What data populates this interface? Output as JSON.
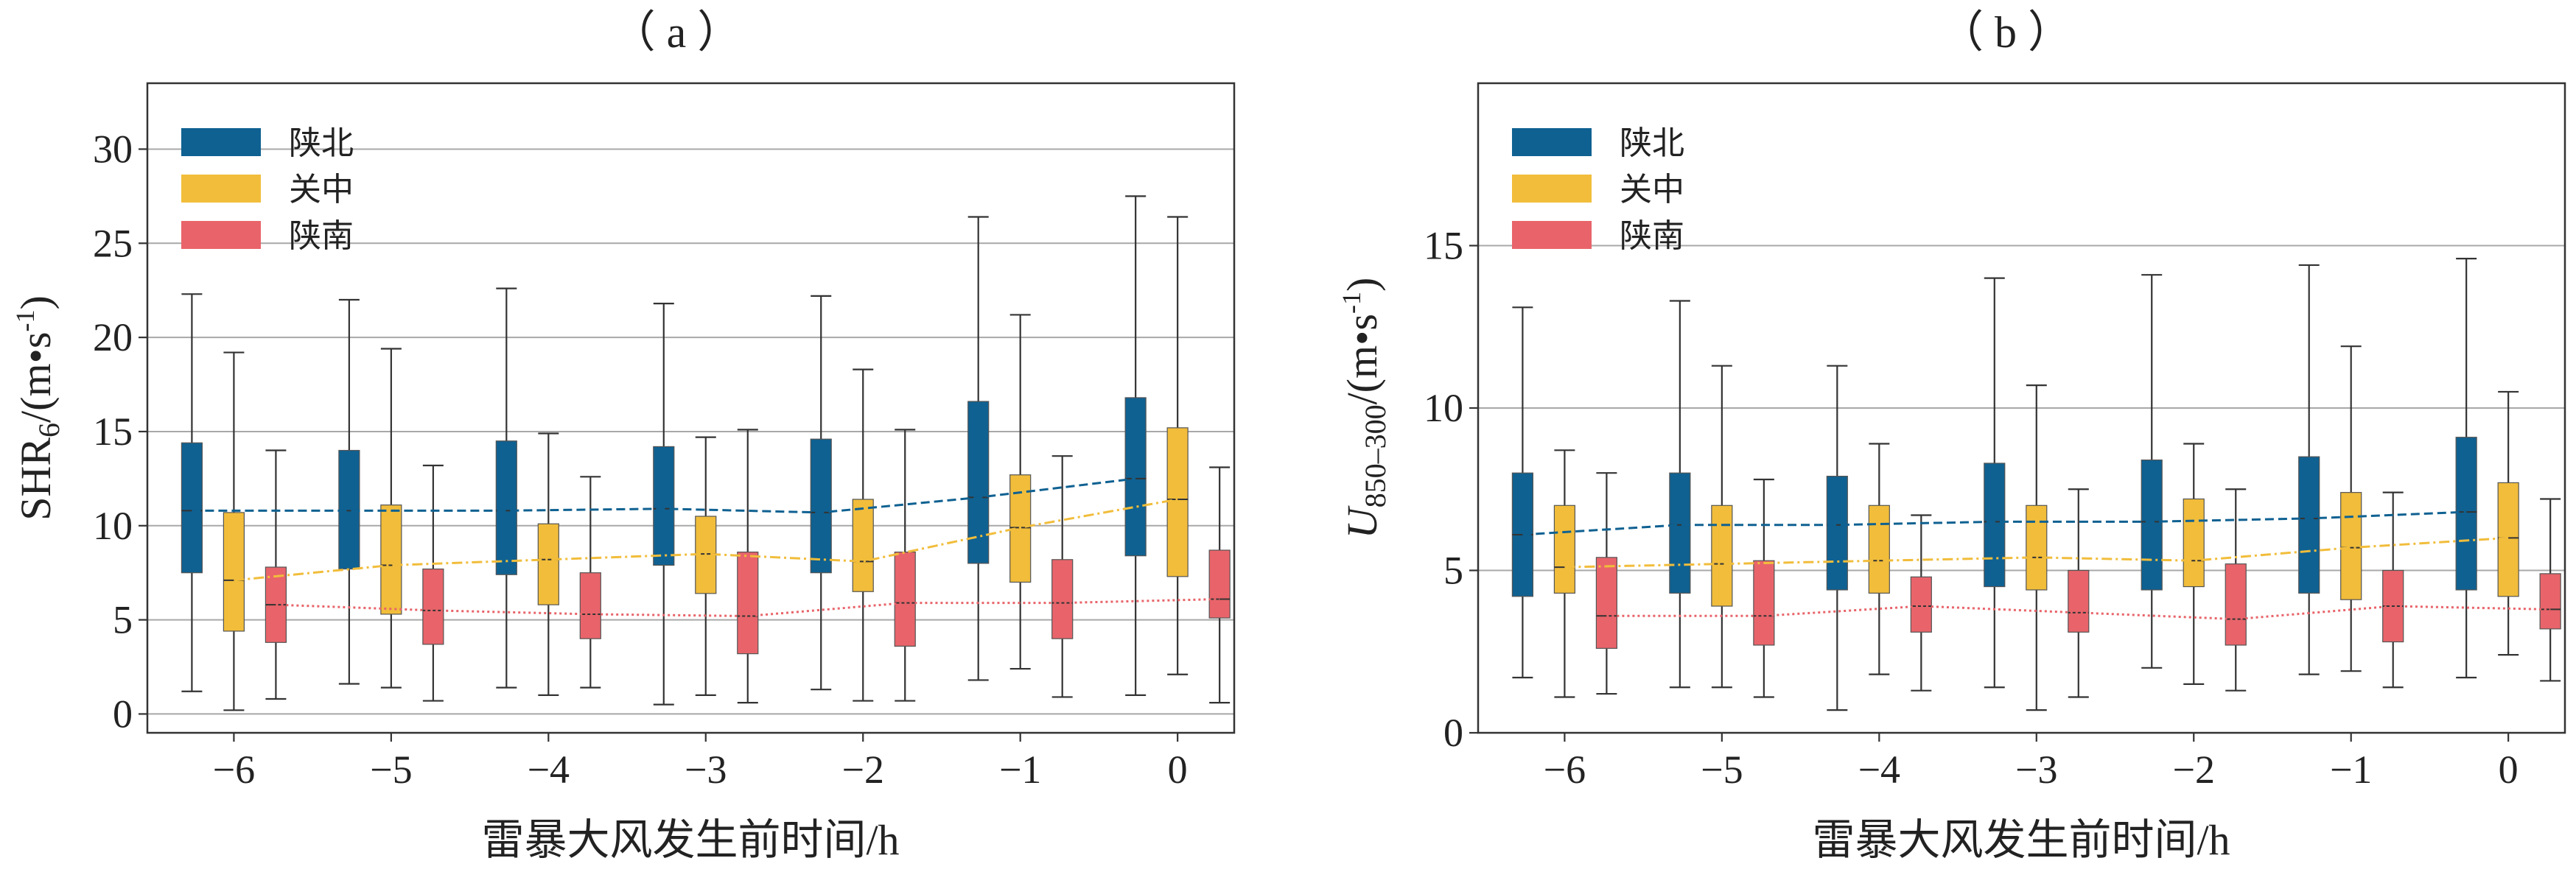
{
  "colors": {
    "north": "#0f6191",
    "central": "#f1bd3b",
    "south": "#e8646a"
  },
  "chart_data": [
    {
      "panel_label": "（ a ）",
      "type": "box",
      "xlabel": "雷暴大风发生前时间/h",
      "ylabel_main": "SHR",
      "ylabel_sub": "6",
      "ylabel_unit": "/(m•s",
      "ylabel_exp": "-1",
      "ylabel_close": ")",
      "categories": [
        "−6",
        "−5",
        "−4",
        "−3",
        "−2",
        "−1",
        "0"
      ],
      "x_values": [
        -6,
        -5,
        -4,
        -3,
        -2,
        -1,
        0
      ],
      "ylim": [
        -1,
        33.5
      ],
      "yticks": [
        0,
        5,
        10,
        15,
        20,
        25,
        30
      ],
      "ytick_labels": [
        "0",
        "5",
        "10",
        "15",
        "20",
        "25",
        "30"
      ],
      "grid": "horizontal",
      "legend_position": "top-left",
      "series": [
        {
          "name": "陕北",
          "color_key": "north",
          "line_style": "dashed",
          "boxes": [
            {
              "whislo": 1.2,
              "q1": 7.5,
              "med": 10.8,
              "q3": 14.4,
              "whishi": 22.3
            },
            {
              "whislo": 1.6,
              "q1": 7.7,
              "med": 10.8,
              "q3": 14.0,
              "whishi": 22.0
            },
            {
              "whislo": 1.4,
              "q1": 7.4,
              "med": 10.8,
              "q3": 14.5,
              "whishi": 22.6
            },
            {
              "whislo": 0.5,
              "q1": 7.9,
              "med": 10.9,
              "q3": 14.2,
              "whishi": 21.8
            },
            {
              "whislo": 1.3,
              "q1": 7.5,
              "med": 10.7,
              "q3": 14.6,
              "whishi": 22.2
            },
            {
              "whislo": 1.8,
              "q1": 8.0,
              "med": 11.5,
              "q3": 16.6,
              "whishi": 26.4
            },
            {
              "whislo": 1.0,
              "q1": 8.4,
              "med": 12.5,
              "q3": 16.8,
              "whishi": 27.5
            }
          ]
        },
        {
          "name": "关中",
          "color_key": "central",
          "line_style": "dashdot",
          "boxes": [
            {
              "whislo": 0.2,
              "q1": 4.4,
              "med": 7.1,
              "q3": 10.7,
              "whishi": 19.2
            },
            {
              "whislo": 1.4,
              "q1": 5.3,
              "med": 7.9,
              "q3": 11.1,
              "whishi": 19.4
            },
            {
              "whislo": 1.0,
              "q1": 5.8,
              "med": 8.2,
              "q3": 10.1,
              "whishi": 14.9
            },
            {
              "whislo": 1.0,
              "q1": 6.4,
              "med": 8.5,
              "q3": 10.5,
              "whishi": 14.7
            },
            {
              "whislo": 0.7,
              "q1": 6.5,
              "med": 8.1,
              "q3": 11.4,
              "whishi": 18.3
            },
            {
              "whislo": 2.4,
              "q1": 7.0,
              "med": 9.9,
              "q3": 12.7,
              "whishi": 21.2
            },
            {
              "whislo": 2.1,
              "q1": 7.3,
              "med": 11.4,
              "q3": 15.2,
              "whishi": 26.4
            }
          ]
        },
        {
          "name": "陕南",
          "color_key": "south",
          "line_style": "dotted",
          "boxes": [
            {
              "whislo": 0.8,
              "q1": 3.8,
              "med": 5.8,
              "q3": 7.8,
              "whishi": 14.0
            },
            {
              "whislo": 0.7,
              "q1": 3.7,
              "med": 5.5,
              "q3": 7.7,
              "whishi": 13.2
            },
            {
              "whislo": 1.4,
              "q1": 4.0,
              "med": 5.3,
              "q3": 7.5,
              "whishi": 12.6
            },
            {
              "whislo": 0.6,
              "q1": 3.2,
              "med": 5.2,
              "q3": 8.6,
              "whishi": 15.1
            },
            {
              "whislo": 0.7,
              "q1": 3.6,
              "med": 5.9,
              "q3": 8.6,
              "whishi": 15.1
            },
            {
              "whislo": 0.9,
              "q1": 4.0,
              "med": 5.9,
              "q3": 8.2,
              "whishi": 13.7
            },
            {
              "whislo": 0.6,
              "q1": 5.1,
              "med": 6.1,
              "q3": 8.7,
              "whishi": 13.1
            }
          ]
        }
      ]
    },
    {
      "panel_label": "（ b ）",
      "type": "box",
      "xlabel": "雷暴大风发生前时间/h",
      "ylabel_main": "U",
      "ylabel_sub": "850–300",
      "ylabel_unit": "/(m•s",
      "ylabel_exp": "-1",
      "ylabel_close": ")",
      "categories": [
        "−6",
        "−5",
        "−4",
        "−3",
        "−2",
        "−1",
        "0"
      ],
      "x_values": [
        -6,
        -5,
        -4,
        -3,
        -2,
        -1,
        0
      ],
      "ylim": [
        0,
        20
      ],
      "yticks": [
        0,
        5,
        10,
        15
      ],
      "ytick_labels": [
        "0",
        "5",
        "10",
        "15"
      ],
      "grid": "horizontal",
      "legend_position": "top-left",
      "series": [
        {
          "name": "陕北",
          "color_key": "north",
          "line_style": "dashed",
          "boxes": [
            {
              "whislo": 1.7,
              "q1": 4.2,
              "med": 6.1,
              "q3": 8.0,
              "whishi": 13.1
            },
            {
              "whislo": 1.4,
              "q1": 4.3,
              "med": 6.4,
              "q3": 8.0,
              "whishi": 13.3
            },
            {
              "whislo": 0.7,
              "q1": 4.4,
              "med": 6.4,
              "q3": 7.9,
              "whishi": 11.3
            },
            {
              "whislo": 1.4,
              "q1": 4.5,
              "med": 6.5,
              "q3": 8.3,
              "whishi": 14.0
            },
            {
              "whislo": 2.0,
              "q1": 4.4,
              "med": 6.5,
              "q3": 8.4,
              "whishi": 14.1
            },
            {
              "whislo": 1.8,
              "q1": 4.3,
              "med": 6.6,
              "q3": 8.5,
              "whishi": 14.4
            },
            {
              "whislo": 1.7,
              "q1": 4.4,
              "med": 6.8,
              "q3": 9.1,
              "whishi": 14.6
            }
          ]
        },
        {
          "name": "关中",
          "color_key": "central",
          "line_style": "dashdot",
          "boxes": [
            {
              "whislo": 1.1,
              "q1": 4.3,
              "med": 5.1,
              "q3": 7.0,
              "whishi": 8.7
            },
            {
              "whislo": 1.4,
              "q1": 3.9,
              "med": 5.2,
              "q3": 7.0,
              "whishi": 11.3
            },
            {
              "whislo": 1.8,
              "q1": 4.3,
              "med": 5.3,
              "q3": 7.0,
              "whishi": 8.9
            },
            {
              "whislo": 0.7,
              "q1": 4.4,
              "med": 5.4,
              "q3": 7.0,
              "whishi": 10.7
            },
            {
              "whislo": 1.5,
              "q1": 4.5,
              "med": 5.3,
              "q3": 7.2,
              "whishi": 8.9
            },
            {
              "whislo": 1.9,
              "q1": 4.1,
              "med": 5.7,
              "q3": 7.4,
              "whishi": 11.9
            },
            {
              "whislo": 2.4,
              "q1": 4.2,
              "med": 6.0,
              "q3": 7.7,
              "whishi": 10.5
            }
          ]
        },
        {
          "name": "陕南",
          "color_key": "south",
          "line_style": "dotted",
          "boxes": [
            {
              "whislo": 1.2,
              "q1": 2.6,
              "med": 3.6,
              "q3": 5.4,
              "whishi": 8.0
            },
            {
              "whislo": 1.1,
              "q1": 2.7,
              "med": 3.6,
              "q3": 5.3,
              "whishi": 7.8
            },
            {
              "whislo": 1.3,
              "q1": 3.1,
              "med": 3.9,
              "q3": 4.8,
              "whishi": 6.7
            },
            {
              "whislo": 1.1,
              "q1": 3.1,
              "med": 3.7,
              "q3": 5.0,
              "whishi": 7.5
            },
            {
              "whislo": 1.3,
              "q1": 2.7,
              "med": 3.5,
              "q3": 5.2,
              "whishi": 7.5
            },
            {
              "whislo": 1.4,
              "q1": 2.8,
              "med": 3.9,
              "q3": 5.0,
              "whishi": 7.4
            },
            {
              "whislo": 1.6,
              "q1": 3.2,
              "med": 3.8,
              "q3": 4.9,
              "whishi": 7.2
            }
          ]
        }
      ]
    }
  ]
}
